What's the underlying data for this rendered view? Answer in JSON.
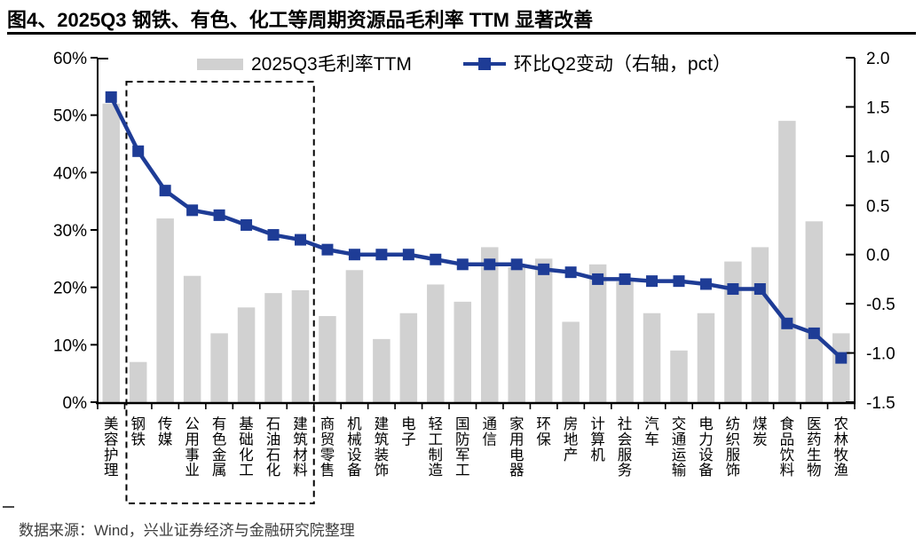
{
  "page": {
    "title": "图4、2025Q3 钢铁、有色、化工等周期资源品毛利率 TTM 显著改善",
    "source_note": "数据来源：Wind，兴业证券经济与金融研究院整理"
  },
  "legend": {
    "bar_label": "2025Q3毛利率TTM",
    "line_label": "环比Q2变动（右轴，pct）"
  },
  "colors": {
    "bar_fill": "#d1d1d1",
    "line": "#1e3c96",
    "axis": "#000000",
    "label_text": "#000000",
    "highlight_border": "#000000"
  },
  "chart_data": {
    "type": "bar",
    "subtype": "bar+line dual axis",
    "legend_position": "top",
    "grid": false,
    "categories": [
      "美容护理",
      "钢铁",
      "传媒",
      "公用事业",
      "有色金属",
      "基础化工",
      "石油石化",
      "建筑材料",
      "商贸零售",
      "机械设备",
      "建筑装饰",
      "电子",
      "轻工制造",
      "国防军工",
      "通信",
      "家用电器",
      "环保",
      "房地产",
      "计算机",
      "社会服务",
      "汽车",
      "交通运输",
      "电力设备",
      "纺织服饰",
      "煤炭",
      "食品饮料",
      "医药生物",
      "农林牧渔"
    ],
    "series": [
      {
        "name": "2025Q3毛利率TTM",
        "type": "bar",
        "axis": "left",
        "unit": "%",
        "values": [
          52,
          7,
          32,
          22,
          12,
          16.5,
          19,
          19.5,
          15,
          23,
          11,
          15.5,
          20.5,
          17.5,
          27,
          23.5,
          25,
          14,
          24,
          21,
          15.5,
          9,
          15.5,
          24.5,
          27,
          49,
          31.5,
          12
        ]
      },
      {
        "name": "环比Q2变动（右轴，pct）",
        "type": "line",
        "axis": "right",
        "unit": "pct",
        "values": [
          1.6,
          1.05,
          0.65,
          0.45,
          0.4,
          0.3,
          0.2,
          0.15,
          0.05,
          0.0,
          0.0,
          0.0,
          -0.05,
          -0.1,
          -0.1,
          -0.1,
          -0.15,
          -0.18,
          -0.25,
          -0.25,
          -0.27,
          -0.27,
          -0.3,
          -0.35,
          -0.35,
          -0.7,
          -0.8,
          -1.05
        ]
      }
    ],
    "left_axis": {
      "min": 0,
      "max": 60,
      "tick_labels": [
        "60%",
        "50%",
        "40%",
        "30%",
        "20%",
        "10%",
        "0%"
      ]
    },
    "right_axis": {
      "min": -1.5,
      "max": 2.0,
      "tick_labels": [
        "2.0",
        "1.5",
        "1.0",
        "0.5",
        "0.0",
        "-0.5",
        "-1.0",
        "-1.5"
      ]
    },
    "highlight_box": {
      "from_category": "钢铁",
      "to_category": "建筑材料"
    }
  }
}
